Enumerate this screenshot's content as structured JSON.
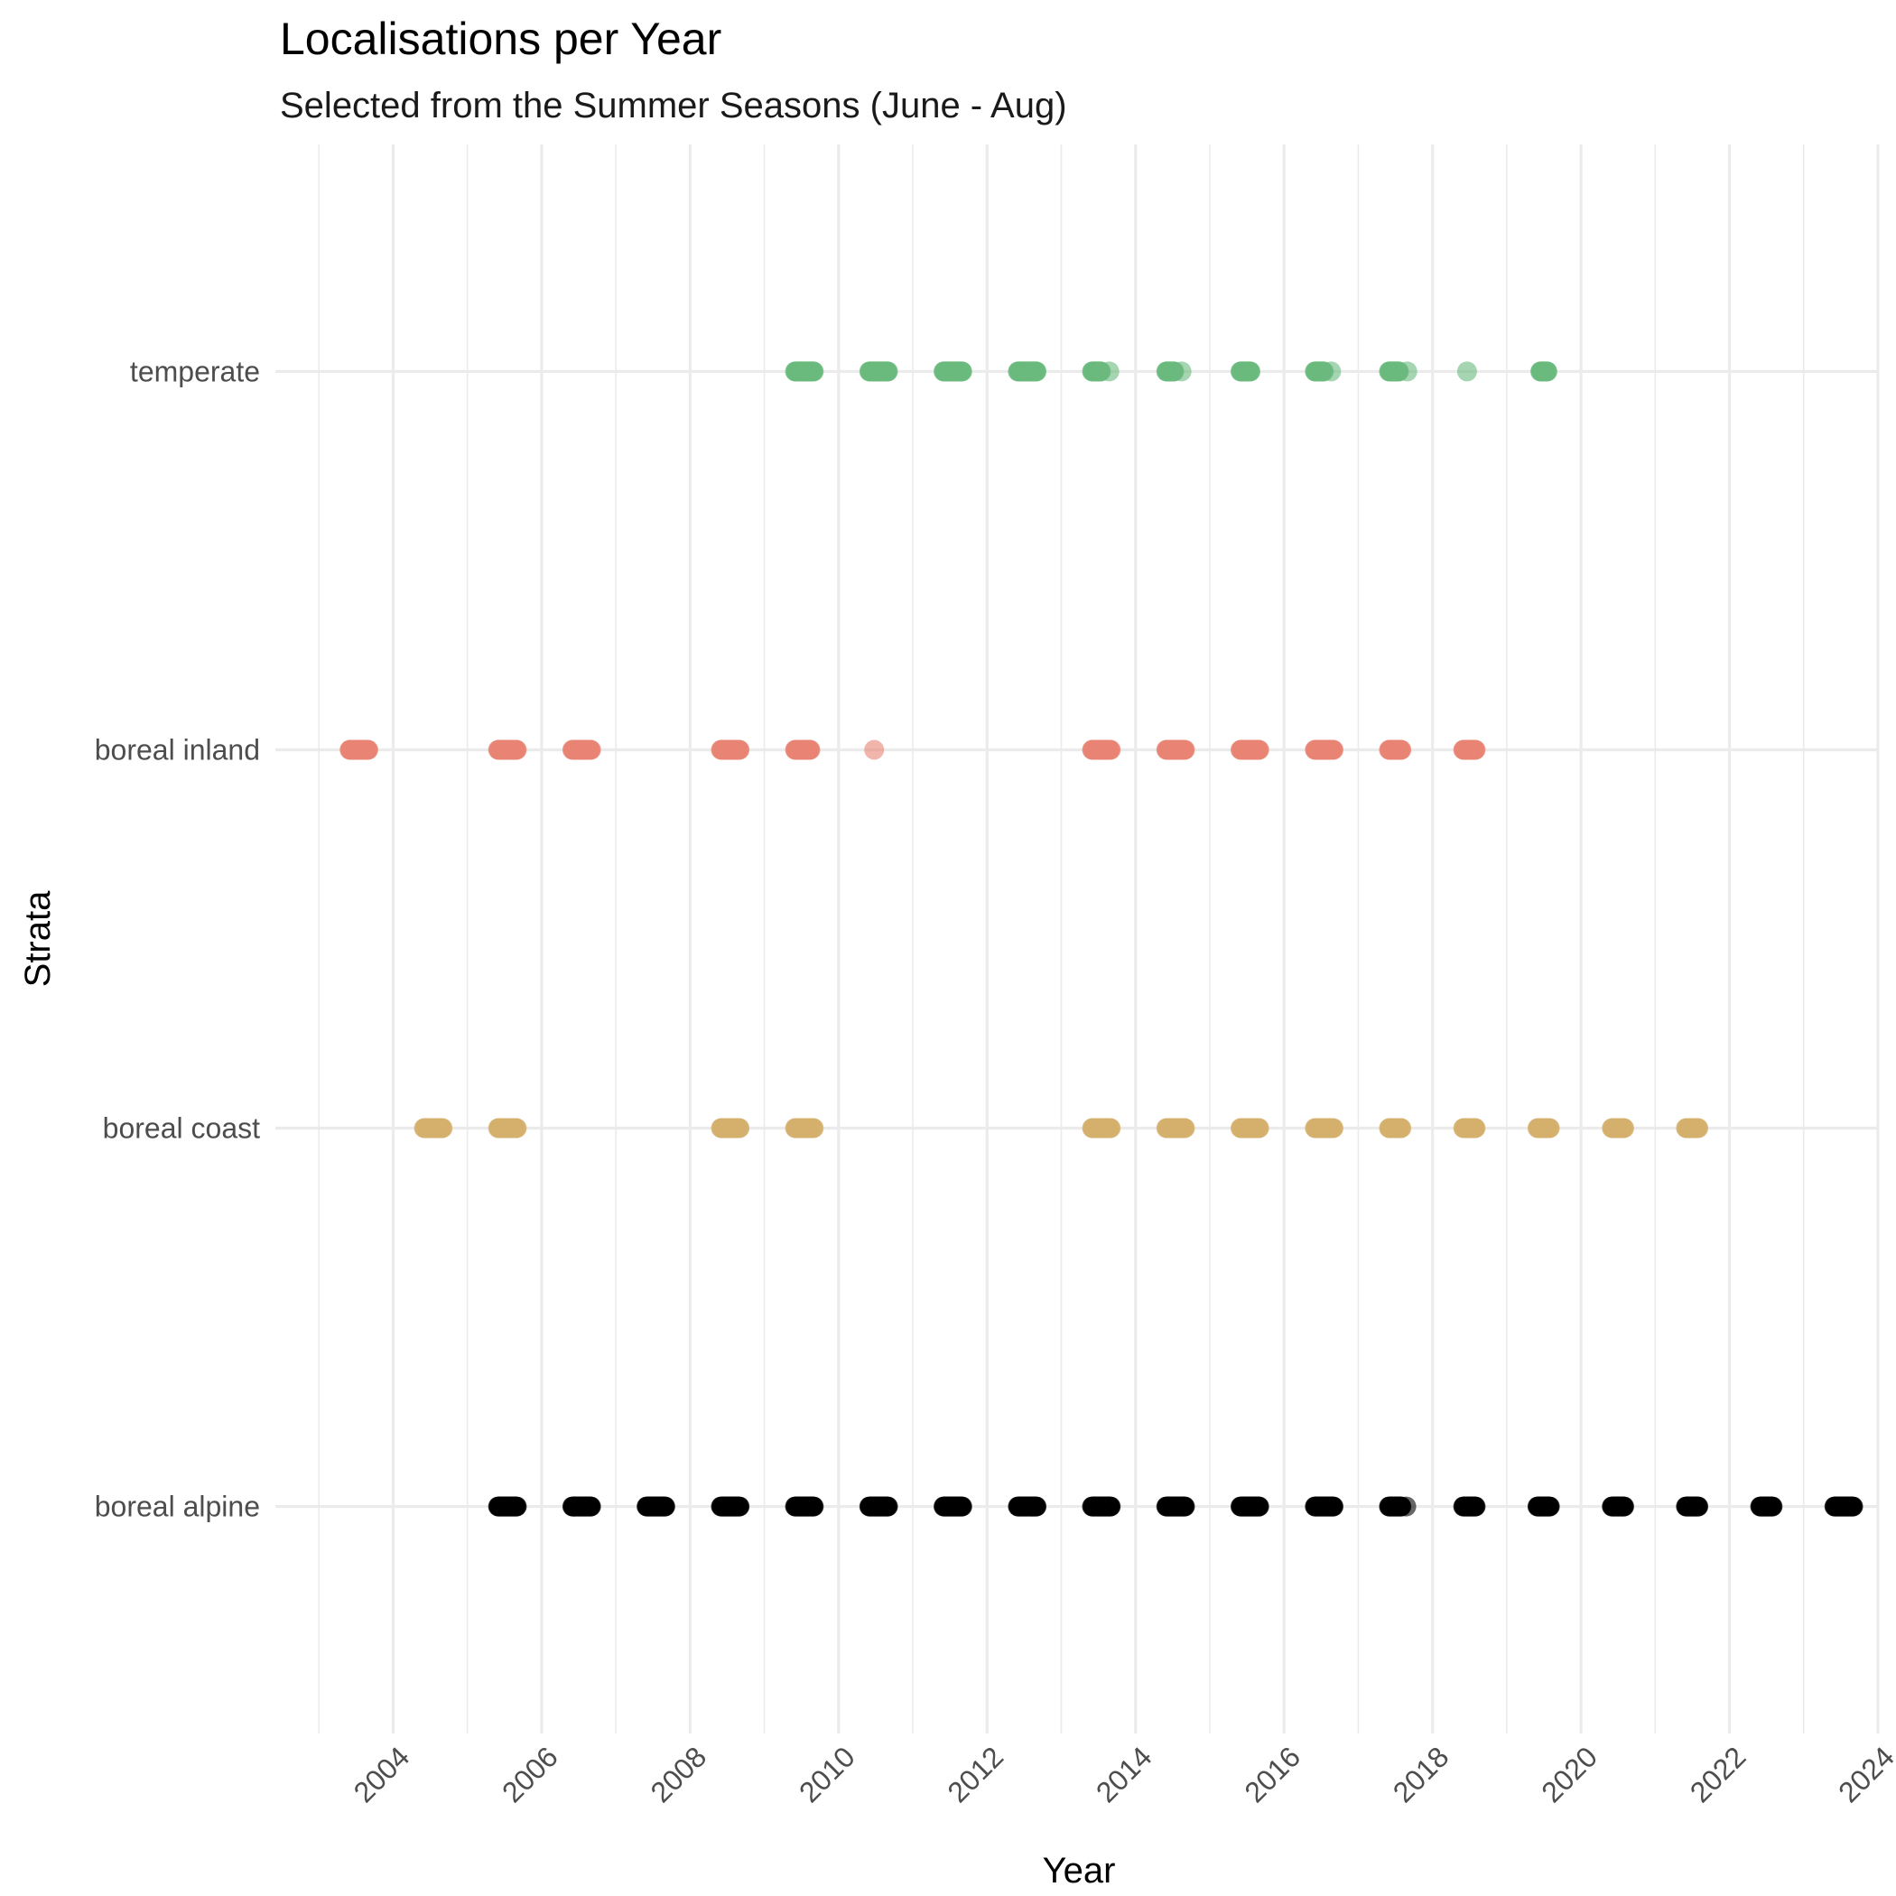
{
  "chart_data": {
    "type": "scatter",
    "title": "Localisations per Year",
    "subtitle": "Selected from the Summer Seasons (June - Aug)",
    "xlabel": "Year",
    "ylabel": "Strata",
    "xlim": [
      "2002-06-01",
      "2024-01-01"
    ],
    "x_ticks": [
      "2004",
      "2006",
      "2008",
      "2010",
      "2012",
      "2014",
      "2016",
      "2018",
      "2020",
      "2022",
      "2024"
    ],
    "categories": [
      "boreal alpine",
      "boreal coast",
      "boreal inland",
      "temperate"
    ],
    "grid": true,
    "legend": "none",
    "series": [
      {
        "category": "temperate",
        "color": "#6bb97e",
        "clusters": [
          [
            "2009-06-01",
            "2009-09-01"
          ],
          [
            "2010-06-01",
            "2010-09-01"
          ],
          [
            "2011-06-01",
            "2011-09-01"
          ],
          [
            "2012-06-01",
            "2012-09-01"
          ],
          [
            "2013-06-01",
            "2013-07-15"
          ],
          [
            "2014-06-01",
            "2014-07-10"
          ],
          [
            "2015-06-01",
            "2015-07-20"
          ],
          [
            "2016-06-01",
            "2016-07-15"
          ],
          [
            "2017-06-01",
            "2017-07-20"
          ],
          [
            "2019-06-15",
            "2019-07-20"
          ]
        ],
        "singles": [
          "2013-08-25",
          "2014-08-15",
          "2016-08-20",
          "2017-08-30",
          "2018-06-20"
        ]
      },
      {
        "category": "boreal inland",
        "color": "#e88474",
        "clusters": [
          [
            "2003-06-01",
            "2003-09-01"
          ],
          [
            "2005-06-01",
            "2005-09-01"
          ],
          [
            "2006-06-01",
            "2006-09-01"
          ],
          [
            "2008-06-01",
            "2008-09-01"
          ],
          [
            "2009-06-01",
            "2009-08-15"
          ],
          [
            "2013-06-01",
            "2013-09-01"
          ],
          [
            "2014-06-01",
            "2014-09-01"
          ],
          [
            "2015-06-01",
            "2015-09-01"
          ],
          [
            "2016-06-01",
            "2016-09-01"
          ],
          [
            "2017-06-01",
            "2017-08-01"
          ],
          [
            "2018-06-01",
            "2018-08-01"
          ]
        ],
        "singles": [
          "2010-06-25"
        ]
      },
      {
        "category": "boreal coast",
        "color": "#d4b06e",
        "clusters": [
          [
            "2004-06-01",
            "2004-09-01"
          ],
          [
            "2005-06-01",
            "2005-09-01"
          ],
          [
            "2008-06-01",
            "2008-09-01"
          ],
          [
            "2009-06-01",
            "2009-09-01"
          ],
          [
            "2013-06-01",
            "2013-09-01"
          ],
          [
            "2014-06-01",
            "2014-09-01"
          ],
          [
            "2015-06-01",
            "2015-09-01"
          ],
          [
            "2016-06-01",
            "2016-09-01"
          ],
          [
            "2017-06-01",
            "2017-08-01"
          ],
          [
            "2018-06-01",
            "2018-08-01"
          ],
          [
            "2019-06-01",
            "2019-08-01"
          ],
          [
            "2020-06-01",
            "2020-08-01"
          ],
          [
            "2021-06-01",
            "2021-08-01"
          ]
        ],
        "singles": []
      },
      {
        "category": "boreal alpine",
        "color": "#000000",
        "clusters": [
          [
            "2005-06-01",
            "2005-09-01"
          ],
          [
            "2006-06-01",
            "2006-09-01"
          ],
          [
            "2007-06-01",
            "2007-09-01"
          ],
          [
            "2008-06-01",
            "2008-09-01"
          ],
          [
            "2009-06-01",
            "2009-09-01"
          ],
          [
            "2010-06-01",
            "2010-09-01"
          ],
          [
            "2011-06-01",
            "2011-09-01"
          ],
          [
            "2012-06-01",
            "2012-09-01"
          ],
          [
            "2013-06-01",
            "2013-09-01"
          ],
          [
            "2014-06-01",
            "2014-09-01"
          ],
          [
            "2015-06-01",
            "2015-09-01"
          ],
          [
            "2016-06-01",
            "2016-09-01"
          ],
          [
            "2017-06-01",
            "2017-08-01"
          ],
          [
            "2018-06-01",
            "2018-08-01"
          ],
          [
            "2019-06-01",
            "2019-08-01"
          ],
          [
            "2020-06-01",
            "2020-08-01"
          ],
          [
            "2021-06-01",
            "2021-08-01"
          ],
          [
            "2022-06-01",
            "2022-08-01"
          ],
          [
            "2023-06-01",
            "2023-09-01"
          ]
        ],
        "singles": [
          "2017-08-25"
        ]
      }
    ]
  }
}
